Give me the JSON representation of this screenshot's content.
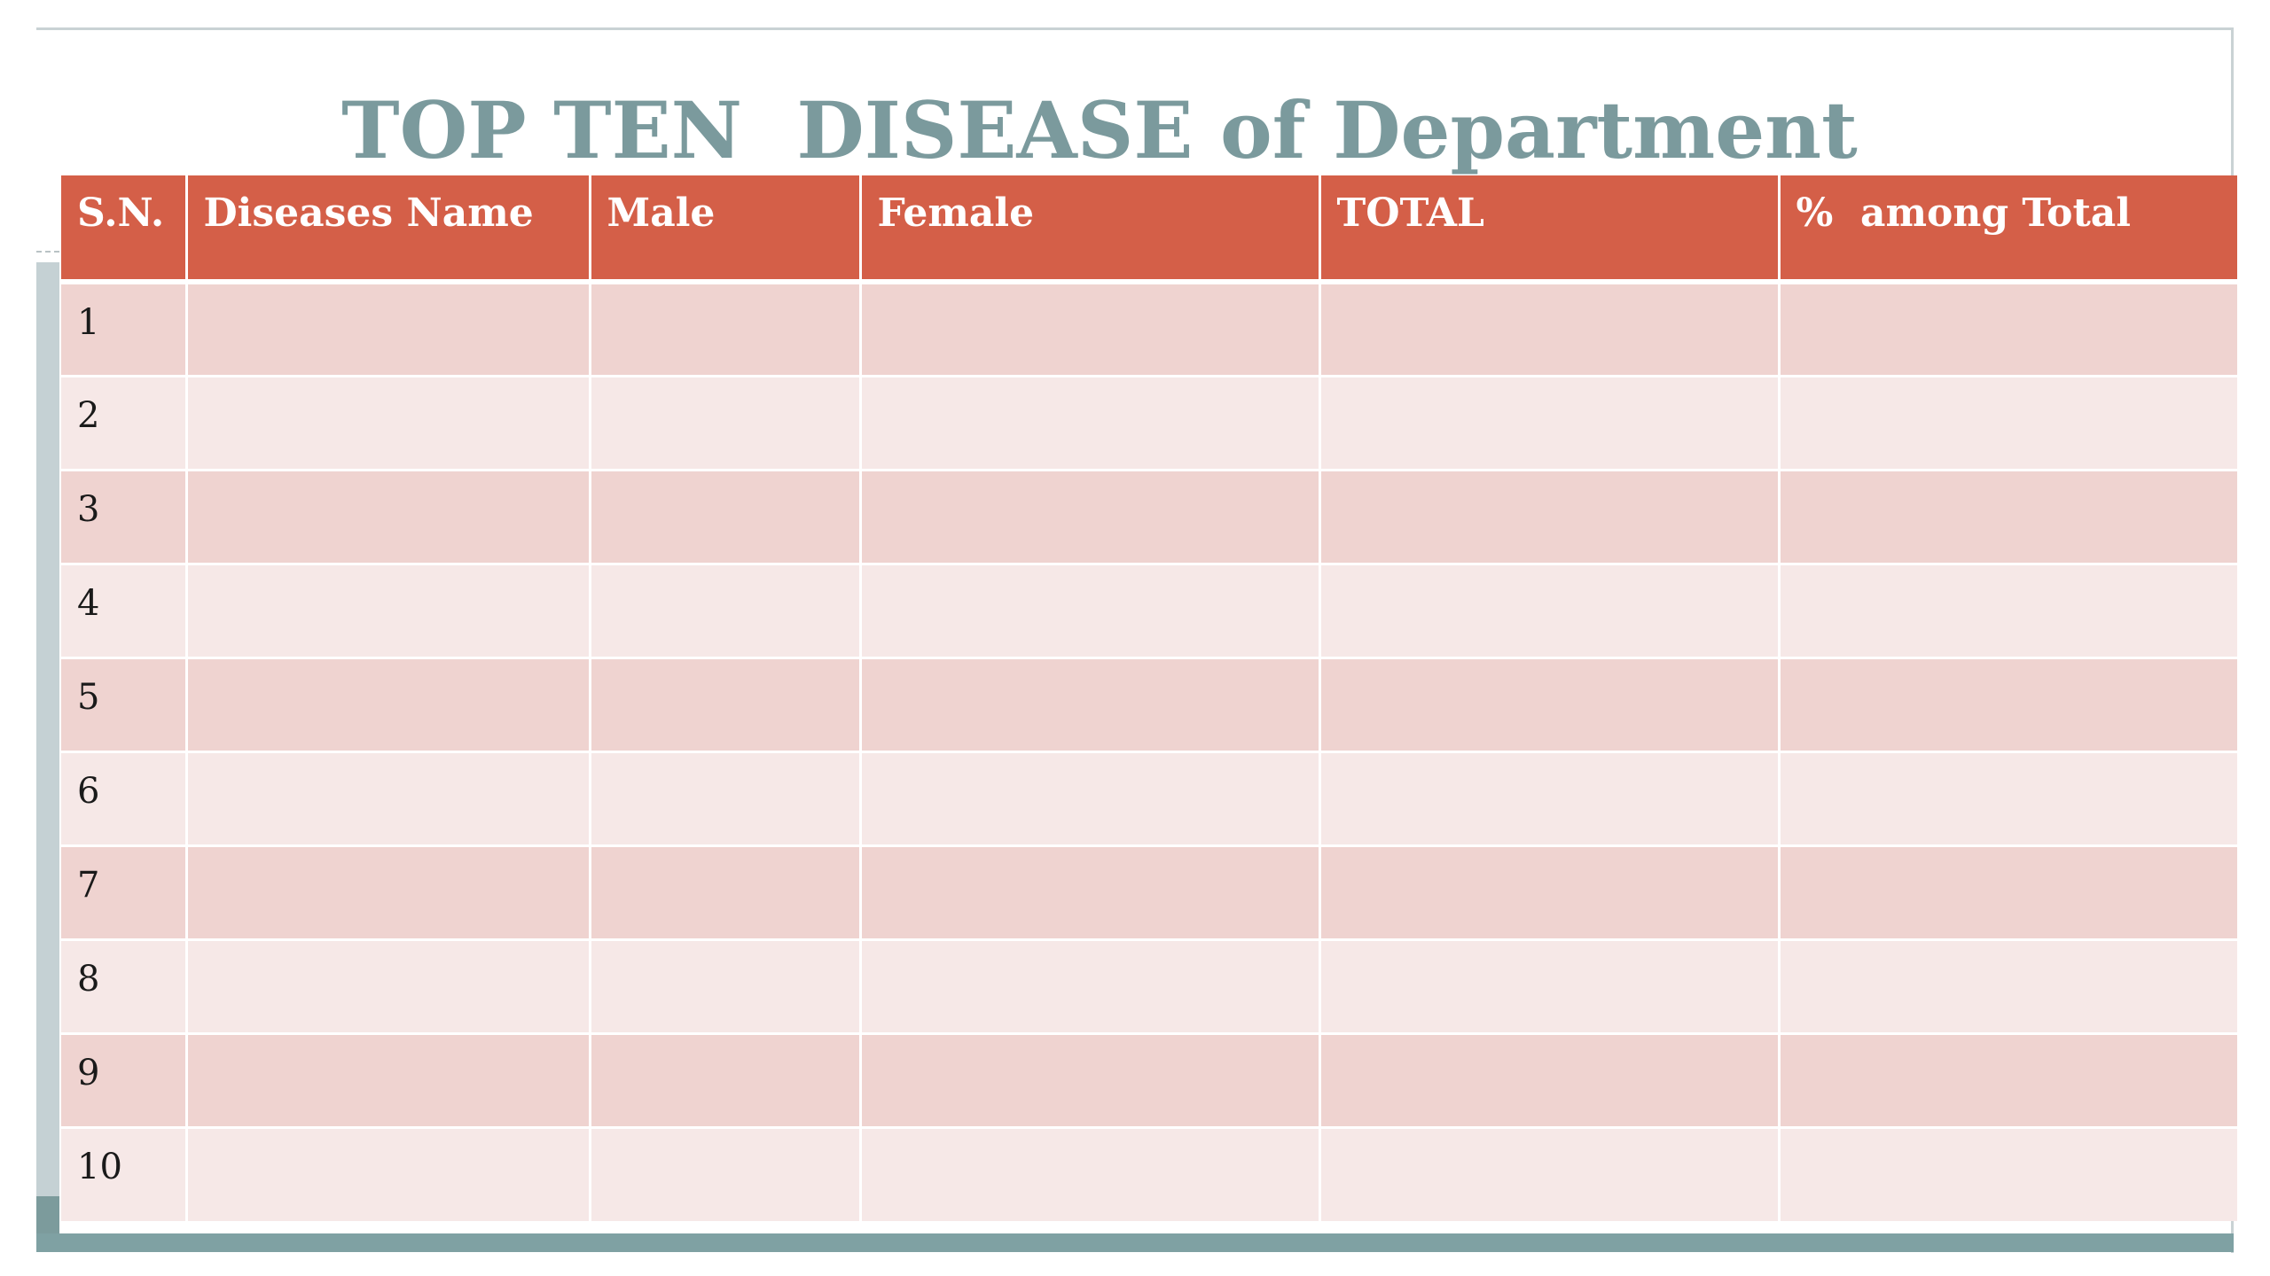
{
  "slide": {
    "title": "TOP TEN  DISEASE of Department"
  },
  "table": {
    "headers": [
      "S.N.",
      "Diseases Name",
      "Male",
      "Female",
      "TOTAL",
      "%  among Total"
    ],
    "rows": [
      [
        "1",
        "",
        "",
        "",
        "",
        ""
      ],
      [
        "2",
        "",
        "",
        "",
        "",
        ""
      ],
      [
        "3",
        "",
        "",
        "",
        "",
        ""
      ],
      [
        "4",
        "",
        "",
        "",
        "",
        ""
      ],
      [
        "5",
        "",
        "",
        "",
        "",
        ""
      ],
      [
        "6",
        "",
        "",
        "",
        "",
        ""
      ],
      [
        "7",
        "",
        "",
        "",
        "",
        ""
      ],
      [
        "8",
        "",
        "",
        "",
        "",
        ""
      ],
      [
        "9",
        "",
        "",
        "",
        "",
        ""
      ],
      [
        "10",
        "",
        "",
        "",
        "",
        ""
      ]
    ]
  },
  "colors": {
    "title": "#7b9a9d",
    "header_bg": "#d45f48",
    "row_odd": "#efd3d0",
    "row_even": "#f6e8e7",
    "accent_bar": "#7fa1a3"
  }
}
